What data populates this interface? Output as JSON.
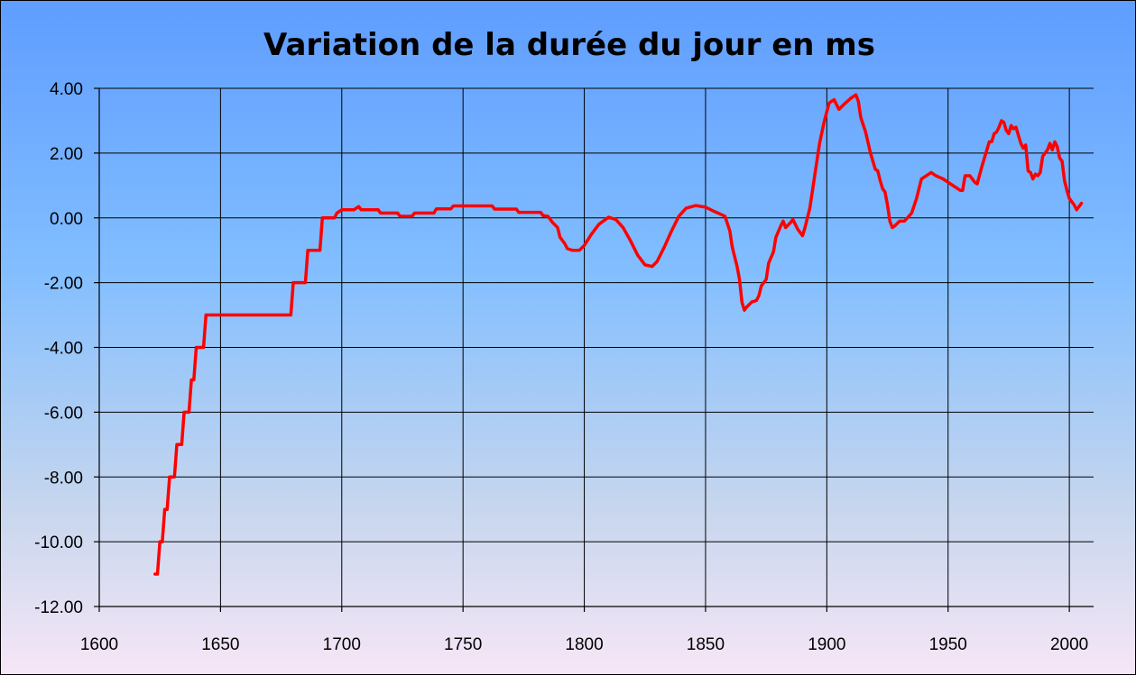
{
  "chart_data": {
    "type": "line",
    "title": "Variation de la durée du jour en ms",
    "xlabel": "",
    "ylabel": "",
    "xlim": [
      1600,
      2010
    ],
    "ylim": [
      -12,
      4
    ],
    "x_ticks": [
      1600,
      1650,
      1700,
      1750,
      1800,
      1850,
      1900,
      1950,
      2000
    ],
    "y_ticks": [
      4,
      2,
      0,
      -2,
      -4,
      -6,
      -8,
      -10,
      -12
    ],
    "x_tick_labels": [
      "1600",
      "1650",
      "1700",
      "1750",
      "1800",
      "1850",
      "1900",
      "1950",
      "2000"
    ],
    "y_tick_labels": [
      "4.00",
      "2.00",
      "0.00",
      "-2.00",
      "-4.00",
      "-6.00",
      "-8.00",
      "-10.00",
      "-12.00"
    ],
    "grid": true,
    "series_color": "#ff0000",
    "series": [
      {
        "points": [
          [
            1623,
            -11
          ],
          [
            1624,
            -11
          ],
          [
            1625,
            -10
          ],
          [
            1626,
            -10
          ],
          [
            1627,
            -9
          ],
          [
            1628,
            -9
          ],
          [
            1629,
            -8
          ],
          [
            1631,
            -8
          ],
          [
            1632,
            -7
          ],
          [
            1634,
            -7
          ],
          [
            1635,
            -6
          ],
          [
            1637,
            -6
          ],
          [
            1638,
            -5
          ],
          [
            1639,
            -5
          ],
          [
            1640,
            -4
          ],
          [
            1643,
            -4
          ],
          [
            1644,
            -3
          ],
          [
            1679,
            -3
          ],
          [
            1680,
            -2
          ],
          [
            1685,
            -2
          ],
          [
            1686,
            -1
          ],
          [
            1691,
            -1
          ],
          [
            1692,
            0
          ],
          [
            1697,
            0
          ],
          [
            1698,
            0.15
          ],
          [
            1700,
            0.25
          ],
          [
            1705,
            0.25
          ],
          [
            1707,
            0.35
          ],
          [
            1708,
            0.25
          ],
          [
            1715,
            0.25
          ],
          [
            1716,
            0.15
          ],
          [
            1723,
            0.15
          ],
          [
            1724,
            0.05
          ],
          [
            1729,
            0.05
          ],
          [
            1730,
            0.15
          ],
          [
            1738,
            0.15
          ],
          [
            1739,
            0.28
          ],
          [
            1745,
            0.28
          ],
          [
            1746,
            0.37
          ],
          [
            1762,
            0.37
          ],
          [
            1763,
            0.27
          ],
          [
            1772,
            0.27
          ],
          [
            1773,
            0.17
          ],
          [
            1782,
            0.17
          ],
          [
            1783,
            0.07
          ],
          [
            1785,
            0.05
          ],
          [
            1787,
            -0.15
          ],
          [
            1789,
            -0.3
          ],
          [
            1790,
            -0.6
          ],
          [
            1792,
            -0.8
          ],
          [
            1793,
            -0.95
          ],
          [
            1795,
            -1.0
          ],
          [
            1798,
            -1.0
          ],
          [
            1800,
            -0.85
          ],
          [
            1803,
            -0.5
          ],
          [
            1806,
            -0.2
          ],
          [
            1810,
            0.02
          ],
          [
            1813,
            -0.05
          ],
          [
            1816,
            -0.3
          ],
          [
            1819,
            -0.7
          ],
          [
            1822,
            -1.15
          ],
          [
            1825,
            -1.45
          ],
          [
            1828,
            -1.5
          ],
          [
            1830,
            -1.35
          ],
          [
            1833,
            -0.9
          ],
          [
            1836,
            -0.4
          ],
          [
            1839,
            0.05
          ],
          [
            1842,
            0.3
          ],
          [
            1846,
            0.38
          ],
          [
            1850,
            0.33
          ],
          [
            1853,
            0.22
          ],
          [
            1856,
            0.12
          ],
          [
            1858,
            0.05
          ],
          [
            1860,
            -0.4
          ],
          [
            1861,
            -0.9
          ],
          [
            1862,
            -1.2
          ],
          [
            1863,
            -1.5
          ],
          [
            1864,
            -1.9
          ],
          [
            1865,
            -2.6
          ],
          [
            1866,
            -2.85
          ],
          [
            1867,
            -2.75
          ],
          [
            1869,
            -2.6
          ],
          [
            1871,
            -2.55
          ],
          [
            1872,
            -2.4
          ],
          [
            1873,
            -2.1
          ],
          [
            1875,
            -1.9
          ],
          [
            1876,
            -1.4
          ],
          [
            1878,
            -1.05
          ],
          [
            1879,
            -0.6
          ],
          [
            1881,
            -0.25
          ],
          [
            1882,
            -0.1
          ],
          [
            1883,
            -0.3
          ],
          [
            1885,
            -0.15
          ],
          [
            1886,
            -0.05
          ],
          [
            1887,
            -0.2
          ],
          [
            1888,
            -0.35
          ],
          [
            1890,
            -0.55
          ],
          [
            1891,
            -0.3
          ],
          [
            1893,
            0.3
          ],
          [
            1895,
            1.3
          ],
          [
            1897,
            2.3
          ],
          [
            1899,
            3.0
          ],
          [
            1901,
            3.55
          ],
          [
            1903,
            3.65
          ],
          [
            1905,
            3.35
          ],
          [
            1907,
            3.5
          ],
          [
            1910,
            3.7
          ],
          [
            1912,
            3.8
          ],
          [
            1913,
            3.6
          ],
          [
            1914,
            3.1
          ],
          [
            1916,
            2.65
          ],
          [
            1918,
            2.0
          ],
          [
            1920,
            1.5
          ],
          [
            1921,
            1.45
          ],
          [
            1922,
            1.15
          ],
          [
            1923,
            0.9
          ],
          [
            1924,
            0.8
          ],
          [
            1925,
            0.4
          ],
          [
            1926,
            -0.1
          ],
          [
            1927,
            -0.3
          ],
          [
            1928,
            -0.25
          ],
          [
            1930,
            -0.1
          ],
          [
            1932,
            -0.1
          ],
          [
            1933,
            -0.02
          ],
          [
            1935,
            0.15
          ],
          [
            1937,
            0.6
          ],
          [
            1939,
            1.2
          ],
          [
            1941,
            1.3
          ],
          [
            1943,
            1.4
          ],
          [
            1945,
            1.3
          ],
          [
            1948,
            1.2
          ],
          [
            1951,
            1.05
          ],
          [
            1953,
            0.95
          ],
          [
            1955,
            0.85
          ],
          [
            1956,
            0.85
          ],
          [
            1957,
            1.3
          ],
          [
            1959,
            1.3
          ],
          [
            1961,
            1.1
          ],
          [
            1962,
            1.05
          ],
          [
            1964,
            1.6
          ],
          [
            1966,
            2.1
          ],
          [
            1967,
            2.35
          ],
          [
            1968,
            2.35
          ],
          [
            1969,
            2.6
          ],
          [
            1970,
            2.65
          ],
          [
            1971,
            2.8
          ],
          [
            1972,
            3.0
          ],
          [
            1973,
            2.95
          ],
          [
            1974,
            2.7
          ],
          [
            1975,
            2.6
          ],
          [
            1976,
            2.85
          ],
          [
            1977,
            2.75
          ],
          [
            1978,
            2.8
          ],
          [
            1979,
            2.55
          ],
          [
            1980,
            2.3
          ],
          [
            1981,
            2.15
          ],
          [
            1982,
            2.25
          ],
          [
            1983,
            1.45
          ],
          [
            1984,
            1.4
          ],
          [
            1985,
            1.2
          ],
          [
            1986,
            1.35
          ],
          [
            1987,
            1.3
          ],
          [
            1988,
            1.4
          ],
          [
            1989,
            1.9
          ],
          [
            1990,
            2.0
          ],
          [
            1991,
            2.1
          ],
          [
            1992,
            2.3
          ],
          [
            1993,
            2.1
          ],
          [
            1994,
            2.35
          ],
          [
            1995,
            2.2
          ],
          [
            1996,
            1.85
          ],
          [
            1997,
            1.75
          ],
          [
            1998,
            1.15
          ],
          [
            1999,
            0.85
          ],
          [
            2000,
            0.6
          ],
          [
            2001,
            0.5
          ],
          [
            2002,
            0.4
          ],
          [
            2003,
            0.25
          ],
          [
            2004,
            0.35
          ],
          [
            2005,
            0.45
          ]
        ]
      }
    ]
  }
}
